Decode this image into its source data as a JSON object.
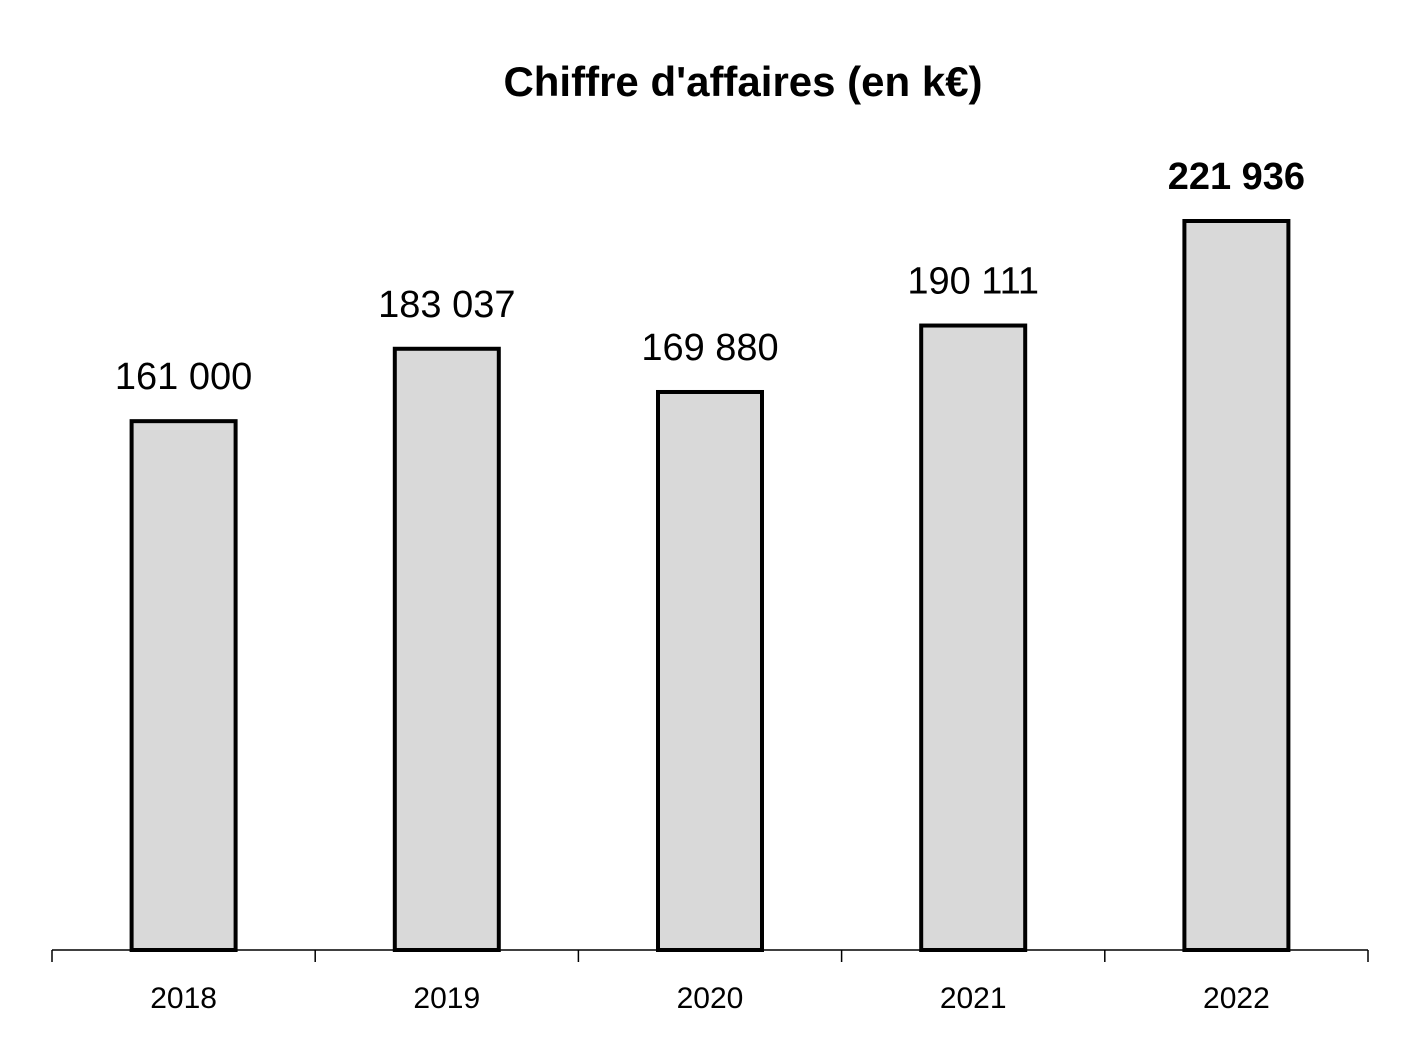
{
  "chart_data": {
    "type": "bar",
    "title": "Chiffre d'affaires (en k€)",
    "categories": [
      "2018",
      "2019",
      "2020",
      "2021",
      "2022"
    ],
    "values": [
      161000,
      183037,
      169880,
      190111,
      221936
    ],
    "value_labels": [
      "161 000",
      "183 037",
      "169 880",
      "190 111",
      "221 936"
    ],
    "color": "#d9d9d9"
  }
}
